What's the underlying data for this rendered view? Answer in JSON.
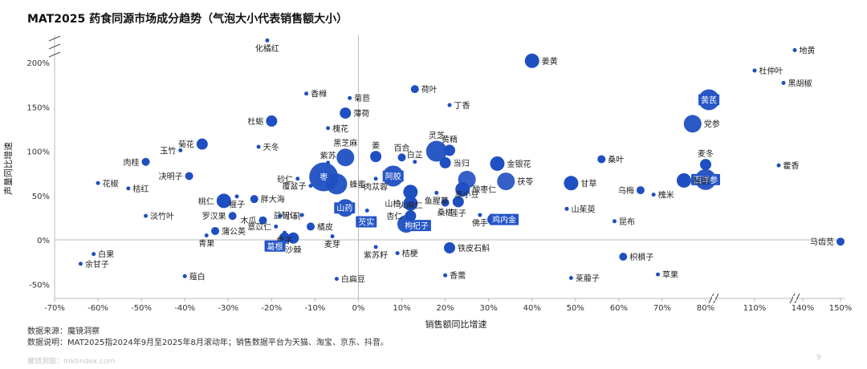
{
  "title": "MAT2025 药食同源市场成分趋势（气泡大小代表销售额大小）",
  "footer": {
    "source": "数据来源：魔镜洞察",
    "explanation": "数据说明：MAT2025指2024年9月至2025年8月滚动年；销售数据平台为天猫、淘宝、京东、抖音。",
    "watermark": "魔镜洞察：mktindex.com",
    "page": "9"
  },
  "colors": {
    "bubble": "#1f4fc1",
    "highlight_box": "#2556c7",
    "light_bubble": "#dfe7f6",
    "axis_line": "#bbbbbb"
  },
  "chart_data": {
    "type": "scatter",
    "title": "MAT2025 药食同源市场成分趋势（气泡大小代表销售额大小）",
    "xlabel": "销售额同比增速",
    "ylabel": "声量同比增速",
    "x_axis": {
      "ticks": [
        "-70%",
        "-60%",
        "-50%",
        "-40%",
        "-30%",
        "-20%",
        "-10%",
        "0%",
        "10%",
        "20%",
        "30%",
        "40%",
        "50%",
        "60%",
        "70%",
        "80%",
        "110%",
        "140%",
        "150%"
      ],
      "unit": "%",
      "breaks": [
        "80%-110%",
        "110%-140%"
      ]
    },
    "y_axis": {
      "ticks": [
        "-50%",
        "0%",
        "50%",
        "100%",
        "150%",
        "200%"
      ],
      "unit": "%",
      "break": "above 200%"
    },
    "grid": false,
    "points": [
      {
        "name": "化橘红",
        "x": -21,
        "y": 225,
        "size": 1
      },
      {
        "name": "地黄",
        "x": 135,
        "y": 214,
        "size": 1
      },
      {
        "name": "杜仲叶",
        "x": 110,
        "y": 191,
        "size": 1
      },
      {
        "name": "黑胡椒",
        "x": 128,
        "y": 177,
        "size": 1
      },
      {
        "name": "姜黄",
        "x": 40,
        "y": 202,
        "size": 4
      },
      {
        "name": "荷叶",
        "x": 13,
        "y": 170,
        "size": 2
      },
      {
        "name": "香橼",
        "x": -12,
        "y": 165,
        "size": 1
      },
      {
        "name": "菊苣",
        "x": -2,
        "y": 160,
        "size": 1
      },
      {
        "name": "丁香",
        "x": 21,
        "y": 152,
        "size": 1
      },
      {
        "name": "黄芪",
        "x": 82,
        "y": 158,
        "size": 6
      },
      {
        "name": "薄荷",
        "x": -3,
        "y": 143,
        "size": 3
      },
      {
        "name": "杜蛎",
        "x": -20,
        "y": 134,
        "size": 3
      },
      {
        "name": "槐花",
        "x": -7,
        "y": 126,
        "size": 1
      },
      {
        "name": "党参",
        "x": 77,
        "y": 131,
        "size": 5
      },
      {
        "name": "菊花",
        "x": -36,
        "y": 108,
        "size": 3
      },
      {
        "name": "天冬",
        "x": -23,
        "y": 105,
        "size": 1
      },
      {
        "name": "玉竹",
        "x": -41,
        "y": 101,
        "size": 1
      },
      {
        "name": "肉桂",
        "x": -49,
        "y": 88,
        "size": 2
      },
      {
        "name": "黑芝麻",
        "x": -3,
        "y": 93,
        "size": 5
      },
      {
        "name": "紫苏",
        "x": -7,
        "y": 87,
        "size": 1
      },
      {
        "name": "姜",
        "x": 4,
        "y": 94,
        "size": 3
      },
      {
        "name": "百合",
        "x": 10,
        "y": 93,
        "size": 2
      },
      {
        "name": "白芷",
        "x": 13,
        "y": 88,
        "size": 1
      },
      {
        "name": "灵芝",
        "x": 18,
        "y": 100,
        "size": 6
      },
      {
        "name": "黄精",
        "x": 21,
        "y": 101,
        "size": 3
      },
      {
        "name": "当归",
        "x": 20,
        "y": 87,
        "size": 3
      },
      {
        "name": "金银花",
        "x": 32,
        "y": 86,
        "size": 4
      },
      {
        "name": "桑叶",
        "x": 56,
        "y": 91,
        "size": 2
      },
      {
        "name": "麦冬",
        "x": 80,
        "y": 85,
        "size": 3
      },
      {
        "name": "藿香",
        "x": 125,
        "y": 84,
        "size": 1
      },
      {
        "name": "决明子",
        "x": -39,
        "y": 72,
        "size": 2
      },
      {
        "name": "花椒",
        "x": -60,
        "y": 64,
        "size": 1
      },
      {
        "name": "桔红",
        "x": -53,
        "y": 58,
        "size": 1
      },
      {
        "name": "枣",
        "x": -8,
        "y": 71,
        "size": 8
      },
      {
        "name": "蜂蜜",
        "x": -5,
        "y": 63,
        "size": 6
      },
      {
        "name": "阿胶",
        "x": 8,
        "y": 72,
        "size": 6
      },
      {
        "name": "肉苁蓉",
        "x": 4,
        "y": 69,
        "size": 1
      },
      {
        "name": "赤小豆",
        "x": 25,
        "y": 68,
        "size": 5
      },
      {
        "name": "茯苓",
        "x": 34,
        "y": 66,
        "size": 5
      },
      {
        "name": "甘草",
        "x": 49,
        "y": 64,
        "size": 4
      },
      {
        "name": "西洋参",
        "x": 80,
        "y": 68,
        "size": 6
      },
      {
        "name": "桂圆",
        "x": 75,
        "y": 67,
        "size": 4
      },
      {
        "name": "乌梅",
        "x": 65,
        "y": 56,
        "size": 2
      },
      {
        "name": "槐米",
        "x": 68,
        "y": 51,
        "size": 1
      },
      {
        "name": "酸枣仁",
        "x": 24,
        "y": 57,
        "size": 4
      },
      {
        "name": "鱼腥草",
        "x": 18,
        "y": 53,
        "size": 1
      },
      {
        "name": "火麻仁",
        "x": 12,
        "y": 54,
        "size": 4
      },
      {
        "name": "桃仁",
        "x": -31,
        "y": 44,
        "size": 4
      },
      {
        "name": "榧子",
        "x": -28,
        "y": 49,
        "size": 1
      },
      {
        "name": "胖大海",
        "x": -24,
        "y": 46,
        "size": 2
      },
      {
        "name": "砂仁",
        "x": -14,
        "y": 69,
        "size": 1
      },
      {
        "name": "覆盆子",
        "x": -11,
        "y": 61,
        "size": 1
      },
      {
        "name": "山药",
        "x": -3,
        "y": 36,
        "size": 5
      },
      {
        "name": "山楂",
        "x": 12,
        "y": 41,
        "size": 4
      },
      {
        "name": "桑椹",
        "x": 20,
        "y": 42,
        "size": 2
      },
      {
        "name": "莲子",
        "x": 23,
        "y": 43,
        "size": 3
      },
      {
        "name": "山茱萸",
        "x": 48,
        "y": 35,
        "size": 1
      },
      {
        "name": "淡竹叶",
        "x": -49,
        "y": 27,
        "size": 1
      },
      {
        "name": "罗汉果",
        "x": -29,
        "y": 27,
        "size": 2
      },
      {
        "name": "木瓜",
        "x": -22,
        "y": 22,
        "size": 2
      },
      {
        "name": "小蓟",
        "x": -18,
        "y": 27,
        "size": 1
      },
      {
        "name": "益智仁",
        "x": -13,
        "y": 28,
        "size": 1
      },
      {
        "name": "橘皮",
        "x": -11,
        "y": 15,
        "size": 2
      },
      {
        "name": "杏仁",
        "x": 12,
        "y": 27,
        "size": 3
      },
      {
        "name": "佛手",
        "x": 28,
        "y": 28,
        "size": 1
      },
      {
        "name": "鸡内金",
        "x": 31,
        "y": 23,
        "size": 3
      },
      {
        "name": "昆布",
        "x": 59,
        "y": 21,
        "size": 1
      },
      {
        "name": "蒲公英",
        "x": -33,
        "y": 10,
        "size": 2
      },
      {
        "name": "青果",
        "x": -35,
        "y": 5,
        "size": 1
      },
      {
        "name": "意苡仁",
        "x": -19,
        "y": 15,
        "size": 1
      },
      {
        "name": "榧子",
        "x": -17,
        "y": 8,
        "size": 1
      },
      {
        "name": "葛根",
        "x": -17,
        "y": 2,
        "size": 3
      },
      {
        "name": "沙棘",
        "x": -15,
        "y": 2,
        "size": 3
      },
      {
        "name": "麦芽",
        "x": -6,
        "y": 4,
        "size": 1
      },
      {
        "name": "芡实",
        "x": 2,
        "y": 33,
        "size": 1
      },
      {
        "name": "枸杞子",
        "x": 11,
        "y": 18,
        "size": 5
      },
      {
        "name": "铁皮石斛",
        "x": 21,
        "y": -9,
        "size": 3
      },
      {
        "name": "马齿苋",
        "x": 150,
        "y": -2,
        "size": 2
      },
      {
        "name": "白果",
        "x": -61,
        "y": -16,
        "size": 1
      },
      {
        "name": "余甘子",
        "x": -64,
        "y": -27,
        "size": 1
      },
      {
        "name": "紫苏籽",
        "x": 4,
        "y": -8,
        "size": 1
      },
      {
        "name": "桔梗",
        "x": 9,
        "y": -15,
        "size": 1
      },
      {
        "name": "枳椇子",
        "x": 61,
        "y": -19,
        "size": 2
      },
      {
        "name": "香薷",
        "x": 20,
        "y": -40,
        "size": 1
      },
      {
        "name": "莱菔子",
        "x": 49,
        "y": -43,
        "size": 1
      },
      {
        "name": "草果",
        "x": 69,
        "y": -39,
        "size": 1
      },
      {
        "name": "薤白",
        "x": -40,
        "y": -41,
        "size": 1
      },
      {
        "name": "白扁豆",
        "x": -5,
        "y": -44,
        "size": 1
      }
    ]
  }
}
